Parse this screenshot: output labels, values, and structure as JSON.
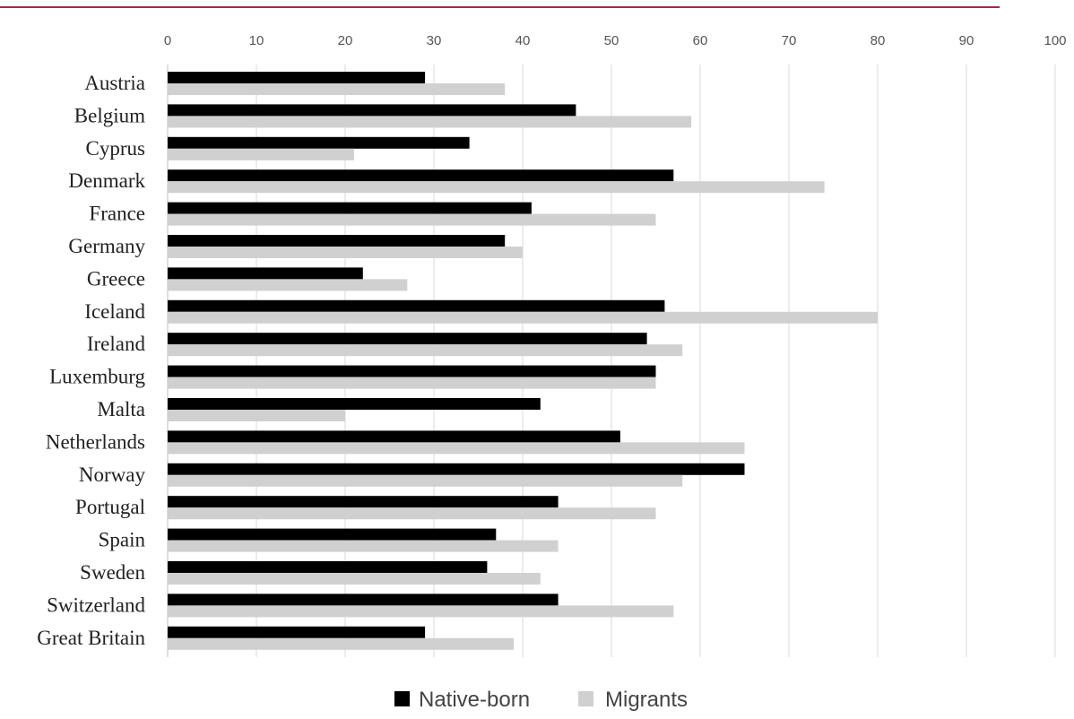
{
  "chart_data": {
    "type": "bar",
    "orientation": "horizontal",
    "categories": [
      "Austria",
      "Belgium",
      "Cyprus",
      "Denmark",
      "France",
      "Germany",
      "Greece",
      "Iceland",
      "Ireland",
      "Luxemburg",
      "Malta",
      "Netherlands",
      "Norway",
      "Portugal",
      "Spain",
      "Sweden",
      "Switzerland",
      "Great Britain"
    ],
    "series": [
      {
        "name": "Native-born",
        "color": "#000000",
        "values": [
          29,
          46,
          34,
          57,
          41,
          38,
          22,
          56,
          54,
          55,
          42,
          51,
          65,
          44,
          37,
          36,
          44,
          29
        ]
      },
      {
        "name": "Migrants",
        "color": "#d0d0d0",
        "values": [
          38,
          59,
          21,
          74,
          55,
          40,
          27,
          80,
          58,
          55,
          20,
          65,
          58,
          55,
          44,
          42,
          57,
          39
        ]
      }
    ],
    "xticks": [
      "0",
      "10",
      "20",
      "30",
      "40",
      "50",
      "60",
      "70",
      "80",
      "90",
      "100"
    ],
    "xlim": [
      0,
      100
    ],
    "grid": true,
    "legend_position": "bottom",
    "title": "",
    "xlabel": "",
    "ylabel": ""
  },
  "header_rule_color": "#a0284b"
}
